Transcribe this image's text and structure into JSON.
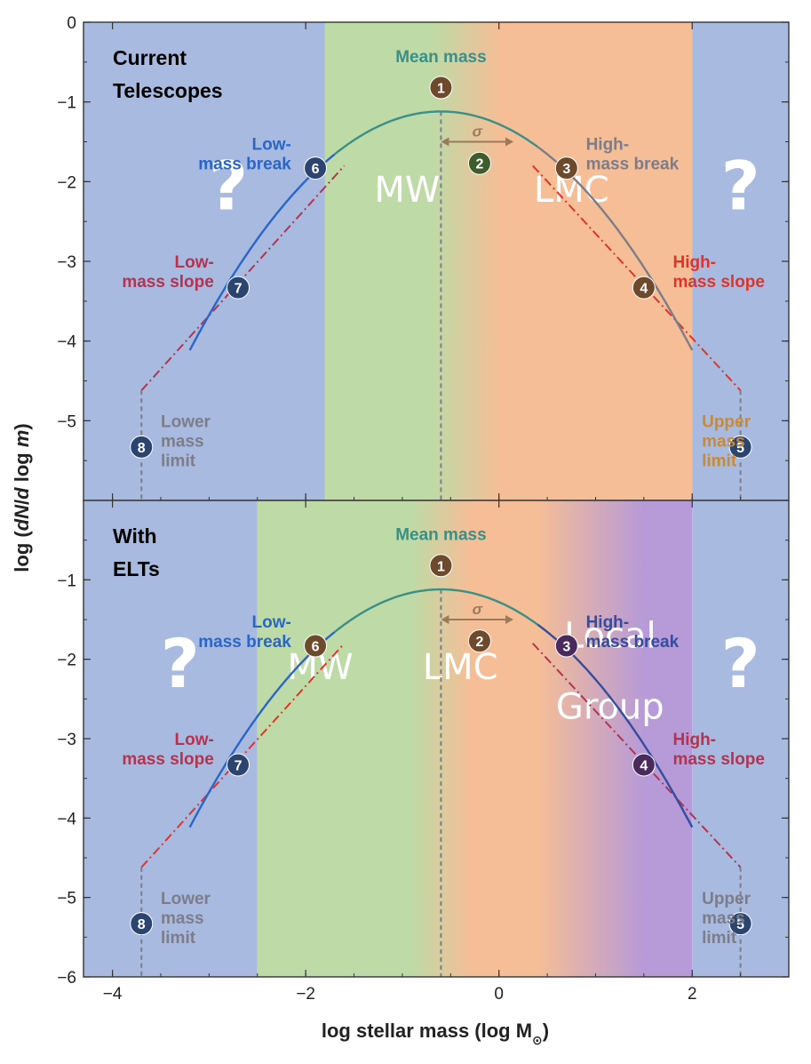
{
  "colors": {
    "sky_blue": "#a8badf",
    "green": "#bedaa6",
    "orange": "#f5be97",
    "purple": "#b79ad8",
    "teal_curve": "#3a8f86",
    "blue_curve": "#2a66c8",
    "gray_curve": "#7d7d8a",
    "navy_curve": "#344d9c",
    "red_dashdot": "#e0342a",
    "crimson_dashdot": "#b23451",
    "navy_marker": "#2c4470",
    "brown_marker": "#6d4a2c",
    "green_marker": "#3e5c2c",
    "purple_marker": "#4a2a5c"
  },
  "chart_data": {
    "type": "line",
    "description_type": "log-normal stellar initial mass function with power-law tails",
    "xlabel": "log stellar mass (log M",
    "xlabel_sub": "⊙",
    "xlabel_close": ")",
    "ylabel_pre": "log (",
    "ylabel_italic1": "dN",
    "ylabel_mid": "/",
    "ylabel_italic2": "d",
    "ylabel_mid2": " log ",
    "ylabel_italic3": "m",
    "ylabel_post": ")",
    "xlim": [
      -4.3,
      3.0
    ],
    "x_ticks": [
      -4,
      -2,
      0,
      2
    ],
    "x_tick_labels": [
      "−4",
      "−2",
      "0",
      "2"
    ],
    "lognormal": {
      "peak_log_m": -0.6,
      "peak_value": -1.12,
      "sigma": 0.7,
      "xmin": -3.2,
      "xmax": 2.0
    },
    "panels": [
      {
        "title_line1": "Current",
        "title_line2": "Telescopes",
        "ylim": [
          -6,
          0
        ],
        "y_ticks": [
          0,
          -1,
          -2,
          -3,
          -4,
          -5
        ],
        "y_tick_labels": [
          "0",
          "−1",
          "−2",
          "−3",
          "−4",
          "−5"
        ],
        "regions": [
          {
            "x0": -4.3,
            "x1": -1.8,
            "color": "sky_blue"
          },
          {
            "x0": -1.8,
            "x1": 2.0,
            "gradient": [
              [
                -1.8,
                "green"
              ],
              [
                -0.7,
                "green"
              ],
              [
                0.0,
                "orange"
              ],
              [
                2.0,
                "orange"
              ]
            ]
          },
          {
            "x0": 2.0,
            "x1": 3.0,
            "color": "sky_blue"
          }
        ],
        "region_labels": [
          {
            "text": "MW",
            "x": -0.95,
            "y": -2.25
          },
          {
            "text": "LMC",
            "x": 0.75,
            "y": -2.25
          }
        ],
        "question_marks": [
          {
            "text": "?",
            "x": -2.8,
            "y": -2.35
          },
          {
            "text": "?",
            "x": 2.5,
            "y": -2.35
          }
        ],
        "series": [
          {
            "role": "low-mass power-law tail",
            "style": "dashdot",
            "color": "crimson_dashdot",
            "points": [
              [
                -3.7,
                -4.62
              ],
              [
                -1.6,
                -1.8
              ]
            ]
          },
          {
            "role": "high-mass power-law tail",
            "style": "dashdot",
            "color": "red_dashdot",
            "points": [
              [
                0.35,
                -1.8
              ],
              [
                2.5,
                -4.62
              ]
            ]
          },
          {
            "role": "lower mass limit",
            "style": "dashed",
            "color": "gray_curve",
            "points": [
              [
                -3.7,
                -4.62
              ],
              [
                -3.7,
                -6
              ]
            ]
          },
          {
            "role": "upper mass limit",
            "style": "dashed",
            "color": "gray_curve",
            "points": [
              [
                2.5,
                -4.62
              ],
              [
                2.5,
                -6
              ]
            ]
          },
          {
            "role": "mean mass line",
            "style": "dashed",
            "color": "gray_curve",
            "points": [
              [
                -0.6,
                -1.12
              ],
              [
                -0.6,
                -6
              ]
            ]
          }
        ],
        "curve_colors": {
          "left": "blue_curve",
          "center": "teal_curve",
          "right": "gray_curve"
        },
        "sigma_arrow": {
          "x0": -0.6,
          "x1": 0.15,
          "y": -1.5,
          "label": "σ",
          "color": "#9a7a5a"
        },
        "annotations": [
          {
            "num": "1",
            "mx": -0.6,
            "my": -0.82,
            "marker": "brown_marker",
            "lines": [
              "Mean mass"
            ],
            "tx": -0.6,
            "ty": -0.5,
            "anchor": "middle",
            "color": "teal_curve"
          },
          {
            "num": "2",
            "mx": -0.2,
            "my": -1.77,
            "marker": "green_marker",
            "lines": [],
            "tx": 0,
            "ty": 0,
            "anchor": "start",
            "color": "teal_curve"
          },
          {
            "num": "3",
            "mx": 0.7,
            "my": -1.83,
            "marker": "brown_marker",
            "lines": [
              "High-",
              "mass break"
            ],
            "tx": 0.9,
            "ty": -1.6,
            "anchor": "start",
            "color": "gray_curve"
          },
          {
            "num": "4",
            "mx": 1.5,
            "my": -3.33,
            "marker": "brown_marker",
            "lines": [
              "High-",
              "mass slope"
            ],
            "tx": 1.8,
            "ty": -3.08,
            "anchor": "start",
            "color": "red_dashdot"
          },
          {
            "num": "5",
            "mx": 2.5,
            "my": -5.33,
            "marker": "navy_marker",
            "lines": [
              "Upper",
              "mass",
              "limit"
            ],
            "tx": 2.1,
            "ty": -5.08,
            "anchor": "start",
            "color": "#c98a35"
          },
          {
            "num": "6",
            "mx": -1.9,
            "my": -1.83,
            "marker": "navy_marker",
            "lines": [
              "Low-",
              "mass break"
            ],
            "tx": -2.15,
            "ty": -1.6,
            "anchor": "end",
            "color": "blue_curve"
          },
          {
            "num": "7",
            "mx": -2.7,
            "my": -3.33,
            "marker": "navy_marker",
            "lines": [
              "Low-",
              "mass slope"
            ],
            "tx": -2.95,
            "ty": -3.08,
            "anchor": "end",
            "color": "crimson_dashdot"
          },
          {
            "num": "8",
            "mx": -3.7,
            "my": -5.33,
            "marker": "navy_marker",
            "lines": [
              "Lower",
              "mass",
              "limit"
            ],
            "tx": -3.5,
            "ty": -5.08,
            "anchor": "start",
            "color": "gray_curve"
          }
        ]
      },
      {
        "title_line1": "With",
        "title_line2": "ELTs",
        "ylim": [
          -6,
          0
        ],
        "y_ticks": [
          -1,
          -2,
          -3,
          -4,
          -5,
          -6
        ],
        "y_tick_labels": [
          "−1",
          "−2",
          "−3",
          "−4",
          "−5",
          "−6"
        ],
        "regions": [
          {
            "x0": -4.3,
            "x1": -2.5,
            "color": "sky_blue"
          },
          {
            "x0": -2.5,
            "x1": 2.0,
            "gradient": [
              [
                -2.5,
                "green"
              ],
              [
                -0.9,
                "green"
              ],
              [
                -0.3,
                "orange"
              ],
              [
                0.4,
                "orange"
              ],
              [
                1.5,
                "purple"
              ],
              [
                2.0,
                "purple"
              ]
            ]
          },
          {
            "x0": 2.0,
            "x1": 3.0,
            "color": "sky_blue"
          }
        ],
        "region_labels": [
          {
            "text": "MW",
            "x": -1.85,
            "y": -2.25
          },
          {
            "text": "LMC",
            "x": -0.4,
            "y": -2.25
          },
          {
            "text": "Local",
            "x": 1.15,
            "y": -1.85
          },
          {
            "text": "Group",
            "x": 1.15,
            "y": -2.75
          }
        ],
        "question_marks": [
          {
            "text": "?",
            "x": -3.3,
            "y": -2.35
          },
          {
            "text": "?",
            "x": 2.5,
            "y": -2.35
          }
        ],
        "series": [
          {
            "role": "low-mass power-law tail",
            "style": "dashdot",
            "color": "red_dashdot",
            "points": [
              [
                -3.7,
                -4.62
              ],
              [
                -1.6,
                -1.8
              ]
            ]
          },
          {
            "role": "high-mass power-law tail",
            "style": "dashdot",
            "color": "crimson_dashdot",
            "points": [
              [
                0.35,
                -1.8
              ],
              [
                2.5,
                -4.62
              ]
            ]
          },
          {
            "role": "lower mass limit",
            "style": "dashed",
            "color": "gray_curve",
            "points": [
              [
                -3.7,
                -4.62
              ],
              [
                -3.7,
                -6
              ]
            ]
          },
          {
            "role": "upper mass limit",
            "style": "dashed",
            "color": "gray_curve",
            "points": [
              [
                2.5,
                -4.62
              ],
              [
                2.5,
                -6
              ]
            ]
          },
          {
            "role": "mean mass line",
            "style": "dashed",
            "color": "gray_curve",
            "points": [
              [
                -0.6,
                -1.12
              ],
              [
                -0.6,
                -6
              ]
            ]
          }
        ],
        "curve_colors": {
          "left": "blue_curve",
          "center": "teal_curve",
          "right": "navy_curve"
        },
        "sigma_arrow": {
          "x0": -0.6,
          "x1": 0.15,
          "y": -1.5,
          "label": "σ",
          "color": "#9a7a5a"
        },
        "annotations": [
          {
            "num": "1",
            "mx": -0.6,
            "my": -0.82,
            "marker": "brown_marker",
            "lines": [
              "Mean mass"
            ],
            "tx": -0.6,
            "ty": -0.5,
            "anchor": "middle",
            "color": "teal_curve"
          },
          {
            "num": "2",
            "mx": -0.2,
            "my": -1.77,
            "marker": "brown_marker",
            "lines": [],
            "tx": 0,
            "ty": 0,
            "anchor": "start",
            "color": "teal_curve"
          },
          {
            "num": "3",
            "mx": 0.7,
            "my": -1.83,
            "marker": "purple_marker",
            "lines": [
              "High-",
              "mass break"
            ],
            "tx": 0.9,
            "ty": -1.6,
            "anchor": "start",
            "color": "navy_curve"
          },
          {
            "num": "4",
            "mx": 1.5,
            "my": -3.33,
            "marker": "purple_marker",
            "lines": [
              "High-",
              "mass slope"
            ],
            "tx": 1.8,
            "ty": -3.08,
            "anchor": "start",
            "color": "crimson_dashdot"
          },
          {
            "num": "5",
            "mx": 2.5,
            "my": -5.33,
            "marker": "navy_marker",
            "lines": [
              "Upper",
              "mass",
              "limit"
            ],
            "tx": 2.1,
            "ty": -5.08,
            "anchor": "start",
            "color": "gray_curve"
          },
          {
            "num": "6",
            "mx": -1.9,
            "my": -1.83,
            "marker": "brown_marker",
            "lines": [
              "Low-",
              "mass break"
            ],
            "tx": -2.15,
            "ty": -1.6,
            "anchor": "end",
            "color": "blue_curve"
          },
          {
            "num": "7",
            "mx": -2.7,
            "my": -3.33,
            "marker": "navy_marker",
            "lines": [
              "Low-",
              "mass slope"
            ],
            "tx": -2.95,
            "ty": -3.08,
            "anchor": "end",
            "color": "crimson_dashdot"
          },
          {
            "num": "8",
            "mx": -3.7,
            "my": -5.33,
            "marker": "navy_marker",
            "lines": [
              "Lower",
              "mass",
              "limit"
            ],
            "tx": -3.5,
            "ty": -5.08,
            "anchor": "start",
            "color": "gray_curve"
          }
        ]
      }
    ]
  }
}
